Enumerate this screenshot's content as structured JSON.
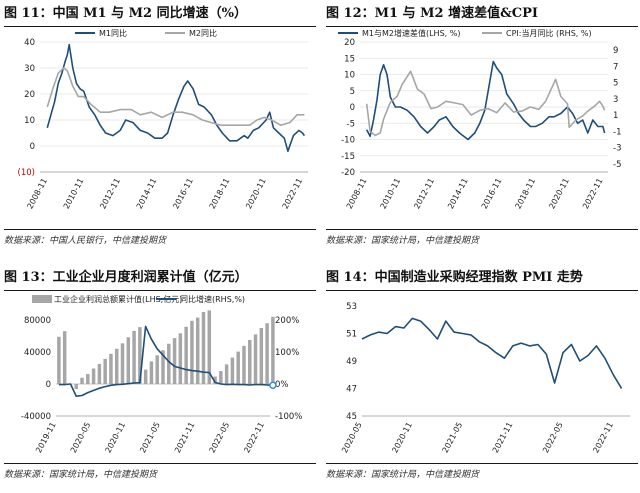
{
  "panels": [
    {
      "title": "图 11：中国 M1 与 M2 同比增速（%）",
      "source": "数据来源：中国人民银行，中信建投期货",
      "chart_data": {
        "type": "line",
        "xlabels": [
          "2008-11",
          "2010-11",
          "2012-11",
          "2014-11",
          "2016-11",
          "2018-11",
          "2020-11",
          "2022-11"
        ],
        "x_range": [
          2008.5,
          2023.2
        ],
        "ylim": [
          -10,
          40
        ],
        "yticks": [
          "40",
          "30",
          "20",
          "10",
          "0",
          "(10)"
        ],
        "grid": true,
        "legend_position": "top",
        "series": [
          {
            "name": "M1同比",
            "color": "#1f4e79",
            "axis": "left",
            "x": [
              2008.9,
              2009.1,
              2009.3,
              2009.5,
              2009.7,
              2009.9,
              2010.0,
              2010.1,
              2010.3,
              2010.5,
              2010.7,
              2010.9,
              2011.2,
              2011.5,
              2011.8,
              2012.1,
              2012.5,
              2012.9,
              2013.2,
              2013.6,
              2014.0,
              2014.4,
              2014.8,
              2015.2,
              2015.5,
              2015.8,
              2016.1,
              2016.4,
              2016.6,
              2016.9,
              2017.2,
              2017.5,
              2017.9,
              2018.2,
              2018.5,
              2018.9,
              2019.3,
              2019.7,
              2019.9,
              2020.2,
              2020.5,
              2020.9,
              2021.1,
              2021.3,
              2021.6,
              2021.9,
              2022.1,
              2022.4,
              2022.7,
              2022.9,
              2023.0
            ],
            "values": [
              7,
              12,
              17,
              24,
              28,
              33,
              35,
              39,
              30,
              24,
              22,
              21,
              15,
              12,
              8,
              5,
              4,
              6,
              10,
              9,
              6,
              5,
              3,
              3,
              5,
              12,
              18,
              23,
              25,
              22,
              16,
              15,
              12,
              8,
              5,
              2,
              2,
              4,
              3,
              6,
              7,
              10,
              13,
              7,
              5,
              3,
              -2,
              4,
              6,
              5,
              4
            ]
          },
          {
            "name": "M2同比",
            "color": "#a6a6a6",
            "axis": "left",
            "x": [
              2008.9,
              2009.2,
              2009.5,
              2009.8,
              2010.0,
              2010.3,
              2010.6,
              2010.9,
              2011.3,
              2011.8,
              2012.3,
              2012.9,
              2013.5,
              2014.0,
              2014.6,
              2015.2,
              2015.8,
              2016.3,
              2016.9,
              2017.4,
              2017.9,
              2018.4,
              2018.9,
              2019.5,
              2020.0,
              2020.4,
              2020.8,
              2021.2,
              2021.7,
              2022.2,
              2022.6,
              2023.0
            ],
            "values": [
              15,
              22,
              28,
              30,
              29,
              23,
              19,
              19,
              16,
              13,
              13,
              14,
              14,
              12,
              13,
              11,
              13,
              13,
              12,
              10,
              9,
              8,
              8,
              8,
              8,
              10,
              11,
              10,
              8,
              9,
              12,
              12
            ]
          }
        ]
      }
    },
    {
      "title": "图 12：M1 与 M2 增速差值&CPI",
      "source": "数据来源：国家统计局，中信建投期货",
      "chart_data": {
        "type": "line",
        "xlabels": [
          "2008-11",
          "2010-11",
          "2012-11",
          "2014-11",
          "2016-11",
          "2018-11",
          "2020-11",
          "2022-11"
        ],
        "x_range": [
          2008.5,
          2023.2
        ],
        "ylim": [
          -20,
          20
        ],
        "yticks": [
          "20",
          "15",
          "10",
          "5",
          "0",
          "-5",
          "-10",
          "-15",
          "-20"
        ],
        "y2lim": [
          -6,
          10
        ],
        "y2ticks": [
          "9",
          "7",
          "5",
          "3",
          "1",
          "-1",
          "-3",
          "-5"
        ],
        "grid": true,
        "legend_position": "top",
        "series": [
          {
            "name": "M1与M2增速差值(LHS, %)",
            "color": "#1f4e79",
            "axis": "left",
            "x": [
              2008.9,
              2009.1,
              2009.3,
              2009.5,
              2009.7,
              2009.9,
              2010.1,
              2010.3,
              2010.6,
              2010.9,
              2011.3,
              2011.7,
              2012.1,
              2012.5,
              2012.9,
              2013.2,
              2013.6,
              2014.0,
              2014.4,
              2014.9,
              2015.3,
              2015.6,
              2015.9,
              2016.2,
              2016.4,
              2016.6,
              2016.9,
              2017.2,
              2017.6,
              2017.9,
              2018.2,
              2018.6,
              2018.9,
              2019.3,
              2019.7,
              2020.0,
              2020.4,
              2020.8,
              2021.1,
              2021.4,
              2021.7,
              2022.0,
              2022.3,
              2022.6,
              2022.9,
              2023.0
            ],
            "values": [
              -7,
              -9,
              -4,
              2,
              10,
              13,
              10,
              3,
              0,
              0,
              -1,
              -3,
              -6,
              -8,
              -6,
              -4,
              -3,
              -6,
              -8,
              -10,
              -8,
              -5,
              -1,
              8,
              14,
              12,
              10,
              4,
              1,
              -2,
              -4,
              -6,
              -6,
              -5,
              -3,
              -3,
              -2,
              0,
              -2,
              -5,
              -4,
              -8,
              -4,
              -6,
              -6,
              -8
            ]
          },
          {
            "name": "CPI:当月同比 (RHS, %)",
            "color": "#a6a6a6",
            "axis": "right",
            "x": [
              2008.9,
              2009.1,
              2009.4,
              2009.7,
              2009.9,
              2010.3,
              2010.7,
              2011.0,
              2011.5,
              2011.9,
              2012.3,
              2012.7,
              2013.1,
              2013.6,
              2014.1,
              2014.6,
              2015.1,
              2015.6,
              2016.1,
              2016.6,
              2017.1,
              2017.6,
              2018.1,
              2018.6,
              2019.1,
              2019.5,
              2019.9,
              2020.1,
              2020.4,
              2020.8,
              2020.9,
              2021.3,
              2021.7,
              2022.0,
              2022.4,
              2022.7,
              2022.9,
              2023.0
            ],
            "values": [
              2.4,
              -1.0,
              -1.5,
              -1.2,
              0.5,
              2.6,
              3.3,
              4.8,
              6.4,
              4.2,
              3.6,
              1.8,
              2.0,
              2.7,
              2.5,
              2.3,
              1.0,
              1.6,
              1.8,
              1.3,
              2.5,
              1.4,
              1.5,
              2.0,
              1.7,
              2.7,
              4.5,
              5.4,
              3.3,
              2.4,
              -0.5,
              0.4,
              0.9,
              1.5,
              2.1,
              2.7,
              2.1,
              1.6
            ]
          }
        ]
      }
    },
    {
      "title": "图 13：工业企业月度利润累计值（亿元）",
      "source": "数据来源：国家统计局，中信建投期货",
      "chart_data": {
        "type": "bar",
        "xlabels": [
          "2019-11",
          "2020-05",
          "2020-11",
          "2021-05",
          "2021-11",
          "2022-05",
          "2022-11"
        ],
        "x_range": [
          0,
          37
        ],
        "ylim": [
          -40000,
          80000
        ],
        "yticks": [
          "80000",
          "40000",
          "0",
          "-40000"
        ],
        "y2lim": [
          -100,
          200
        ],
        "y2ticks": [
          "200%",
          "100%",
          "0%",
          "-100%"
        ],
        "grid": false,
        "legend_position": "top",
        "series": [
          {
            "name": "工业企业利润总额累计值(LHS,亿元)",
            "color": "#a6a6a6",
            "axis": "left",
            "values": [
              59000,
              66000,
              0,
              -6400,
              7800,
              12400,
              19300,
              25100,
              31400,
              37700,
              44000,
              50800,
              58400,
              66400,
              71100,
              18000,
              28300,
              35900,
              42200,
              50300,
              57400,
              63400,
              71600,
              79000,
              83000,
              90000,
              92000,
              9300,
              16200,
              24500,
              33000,
              40500,
              47700,
              55000,
              62000,
              70000,
              76000,
              84000
            ]
          },
          {
            "name": "同比增速(RHS,%)",
            "color": "#1f4e79",
            "axis": "right",
            "values": [
              -2,
              -2,
              0,
              -38,
              -36,
              -27,
              -20,
              -13,
              -8,
              -4,
              -2,
              -1,
              1,
              3,
              4,
              180,
              140,
              110,
              90,
              70,
              55,
              50,
              45,
              42,
              40,
              37,
              36,
              5,
              0,
              -2,
              -1,
              -2,
              -2,
              -3,
              -2,
              -2,
              -3,
              -4
            ]
          }
        ]
      }
    },
    {
      "title": "图 14：中国制造业采购经理指数 PMI 走势",
      "source": "数据来源：国家统计局，中信建投期货",
      "chart_data": {
        "type": "line",
        "xlabels": [
          "2020-05",
          "2020-11",
          "2021-05",
          "2021-11",
          "2022-05",
          "2022-11"
        ],
        "x_range": [
          0,
          32
        ],
        "ylim": [
          47,
          53
        ],
        "yticks": [
          "53",
          "51",
          "49",
          "47",
          "45"
        ],
        "grid": false,
        "series": [
          {
            "name": "PMI",
            "color": "#1f4e79",
            "axis": "left",
            "values": [
              50.6,
              50.9,
              51.1,
              51.0,
              51.5,
              51.4,
              52.1,
              51.9,
              51.3,
              50.6,
              51.9,
              51.1,
              51.0,
              50.9,
              50.4,
              50.1,
              49.6,
              49.2,
              50.1,
              50.3,
              50.1,
              50.2,
              49.5,
              47.4,
              49.6,
              50.2,
              49.0,
              49.4,
              50.1,
              49.2,
              48.0,
              47.0
            ]
          }
        ]
      }
    }
  ]
}
